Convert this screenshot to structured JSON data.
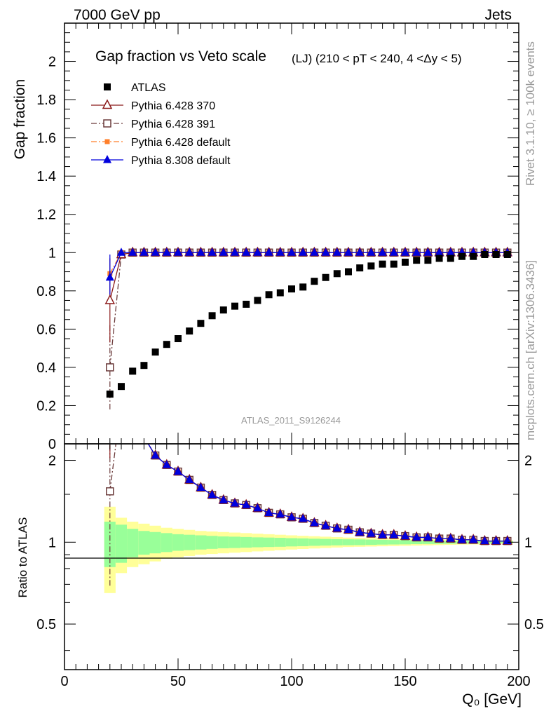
{
  "header": {
    "left": "7000 GeV pp",
    "right": "Jets"
  },
  "side": {
    "rivet": "Rivet 3.1.10, ≥ 100k events",
    "mcplots": "mcplots.cern.ch [arXiv:1306.3436]"
  },
  "analysis_id": "ATLAS_2011_S9126244",
  "chart_data": {
    "type": "scatter",
    "title": "Gap fraction vs Veto scale",
    "subtitle": "(LJ) (210 < pT < 240, 4 <Δy < 5)",
    "xlabel": "Q₀ [GeV]",
    "ylabel": "Gap fraction",
    "ratio_ylabel": "Ratio to ATLAS",
    "xlim": [
      0,
      200
    ],
    "ylim": [
      0,
      2.2
    ],
    "ratio_ylim": [
      0.34,
      2.3
    ],
    "ratio_log": true,
    "x_ticks": [
      0,
      50,
      100,
      150,
      200
    ],
    "y_ticks": [
      0,
      0.2,
      0.4,
      0.6,
      0.8,
      1,
      1.2,
      1.4,
      1.6,
      1.8,
      2
    ],
    "ratio_ticks": [
      0.5,
      1,
      2
    ],
    "x": [
      20,
      25,
      30,
      35,
      40,
      45,
      50,
      55,
      60,
      65,
      70,
      75,
      80,
      85,
      90,
      95,
      100,
      105,
      110,
      115,
      120,
      125,
      130,
      135,
      140,
      145,
      150,
      155,
      160,
      165,
      170,
      175,
      180,
      185,
      190,
      195
    ],
    "series": [
      {
        "name": "ATLAS",
        "color": "#000000",
        "marker": "square-filled",
        "values": [
          0.26,
          0.3,
          0.38,
          0.41,
          0.48,
          0.52,
          0.55,
          0.59,
          0.63,
          0.67,
          0.7,
          0.72,
          0.73,
          0.75,
          0.78,
          0.79,
          0.81,
          0.82,
          0.85,
          0.87,
          0.89,
          0.9,
          0.92,
          0.93,
          0.94,
          0.94,
          0.95,
          0.96,
          0.96,
          0.97,
          0.97,
          0.98,
          0.98,
          0.99,
          0.99,
          0.99
        ]
      },
      {
        "name": "Pythia 6.428 370",
        "color": "#8b1a1a",
        "marker": "triangle-open",
        "line": "solid",
        "values": [
          0.75,
          0.99,
          1,
          1,
          1,
          1,
          1,
          1,
          1,
          1,
          1,
          1,
          1,
          1,
          1,
          1,
          1,
          1,
          1,
          1,
          1,
          1,
          1,
          1,
          1,
          1,
          1,
          1,
          1,
          1,
          1,
          1,
          1,
          1,
          1,
          1
        ],
        "errors": [
          [
            0.53,
            0.97
          ]
        ]
      },
      {
        "name": "Pythia 6.428 391",
        "color": "#6b3b3b",
        "marker": "square-open",
        "line": "dashdot",
        "values": [
          0.4,
          0.99,
          1,
          1,
          1,
          1,
          1,
          1,
          1,
          1,
          1,
          1,
          1,
          1,
          1,
          1,
          1,
          1,
          1,
          1,
          1,
          1,
          1,
          1,
          1,
          1,
          1,
          1,
          1,
          1,
          1,
          1,
          1,
          1,
          1,
          1
        ],
        "errors": [
          [
            0.18,
            0.62
          ]
        ]
      },
      {
        "name": "Pythia 6.428 default",
        "color": "#ff7f2a",
        "marker": "square-small",
        "line": "dashdot",
        "values": [
          0.89,
          1,
          1,
          1,
          1,
          1,
          1,
          1,
          1,
          1,
          1,
          1,
          1,
          1,
          1,
          1,
          1,
          1,
          1,
          1,
          1,
          1,
          1,
          1,
          1,
          1,
          1,
          1,
          1,
          1,
          1,
          1,
          1,
          1,
          1,
          1
        ]
      },
      {
        "name": "Pythia 8.308 default",
        "color": "#0000dd",
        "marker": "triangle-filled",
        "line": "solid",
        "values": [
          0.87,
          1,
          1,
          1,
          1,
          1,
          1,
          1,
          1,
          1,
          1,
          1,
          1,
          1,
          1,
          1,
          1,
          1,
          1,
          1,
          1,
          1,
          1,
          1,
          1,
          1,
          1,
          1,
          1,
          1,
          1,
          1,
          1,
          1,
          1,
          1
        ],
        "errors": [
          [
            0.78,
            0.99
          ]
        ]
      }
    ],
    "uncertainty": {
      "stat_color": "#99ff99",
      "total_color": "#ffff99",
      "stat": [
        0.19,
        0.16,
        0.12,
        0.1,
        0.09,
        0.08,
        0.07,
        0.065,
        0.06,
        0.055,
        0.05,
        0.048,
        0.045,
        0.042,
        0.04,
        0.038,
        0.035,
        0.033,
        0.03,
        0.028,
        0.026,
        0.025,
        0.024,
        0.022,
        0.02,
        0.019,
        0.018,
        0.016,
        0.015,
        0.014,
        0.013,
        0.012,
        0.011,
        0.01,
        0.009,
        0.008
      ],
      "total": [
        0.35,
        0.23,
        0.19,
        0.17,
        0.15,
        0.13,
        0.12,
        0.11,
        0.1,
        0.095,
        0.09,
        0.085,
        0.08,
        0.075,
        0.07,
        0.065,
        0.06,
        0.056,
        0.052,
        0.048,
        0.044,
        0.04,
        0.038,
        0.036,
        0.034,
        0.032,
        0.03,
        0.028,
        0.026,
        0.024,
        0.022,
        0.02,
        0.019,
        0.018,
        0.017,
        0.016
      ]
    },
    "legend_placement": "top-left",
    "grid": false
  }
}
